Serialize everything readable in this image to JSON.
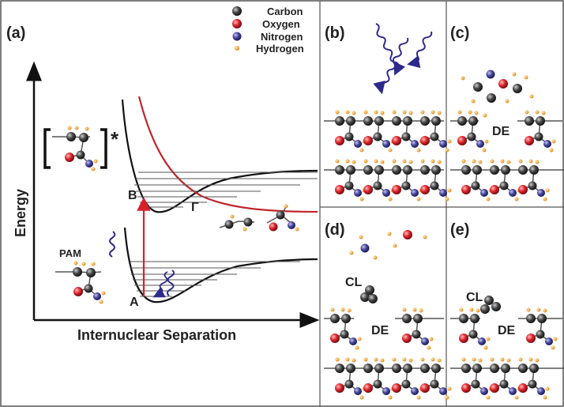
{
  "panels": {
    "a": "(a)",
    "b": "(b)",
    "c": "(c)",
    "d": "(d)",
    "e": "(e)"
  },
  "legend": {
    "carbon": "Carbon",
    "oxygen": "Oxygen",
    "nitrogen": "Nitrogen",
    "hydrogen": "Hydrogen"
  },
  "axes": {
    "y_label": "Energy",
    "x_label": "Internuclear Separation"
  },
  "diagram_labels": {
    "star": "*",
    "point_a": "A",
    "point_b": "B",
    "gamma": "Γ",
    "pam": "PAM",
    "de": "DE",
    "cl": "CL"
  },
  "colors": {
    "carbon": "#333333",
    "oxygen": "#d8202a",
    "nitrogen": "#45459a",
    "hydrogen": "#f0a030",
    "excitation": "#d8202a",
    "photon": "#2e2a8c",
    "ground_curve": "#111111",
    "dissociative_curve": "#c0262c"
  }
}
